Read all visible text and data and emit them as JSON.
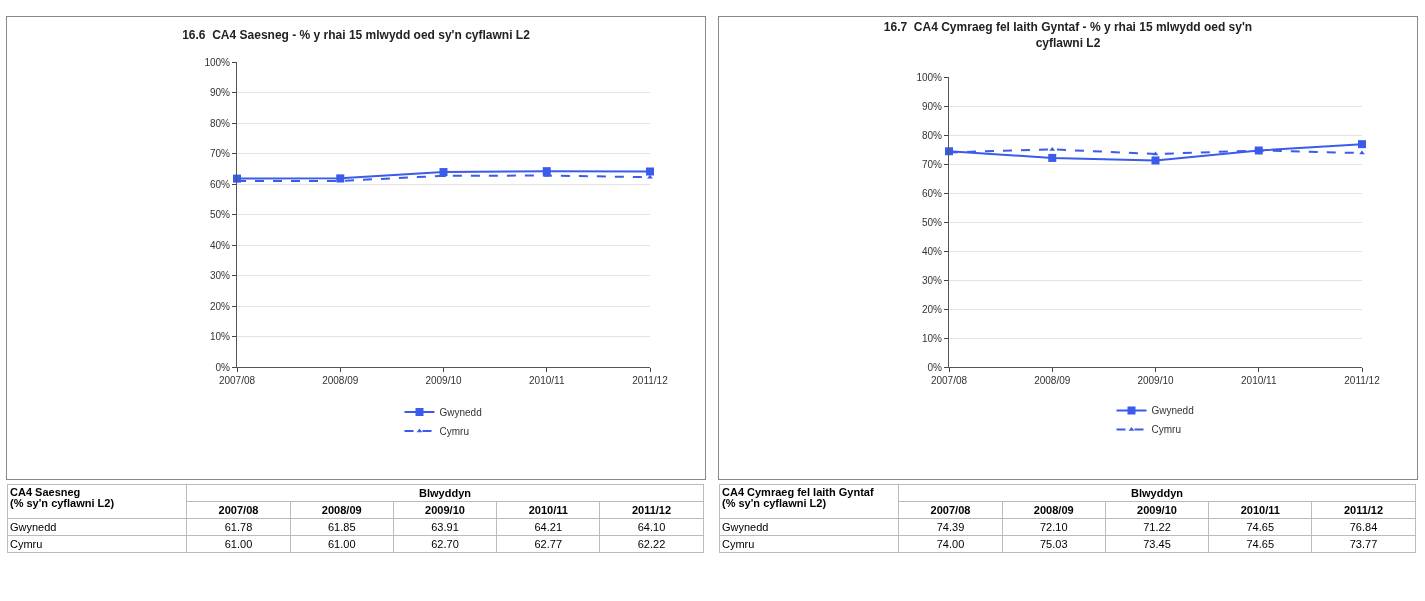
{
  "chart_data": [
    {
      "type": "line",
      "title": "16.6  CA4 Saesneg - % y rhai 15 mlwydd oed sy'n cyflawni L2",
      "categories": [
        "2007/08",
        "2008/09",
        "2009/10",
        "2010/11",
        "2011/12"
      ],
      "series": [
        {
          "name": "Gwynedd",
          "color": "#3b5bea",
          "marker": "square",
          "line_style": "solid",
          "values": [
            61.78,
            61.85,
            63.91,
            64.21,
            64.1
          ],
          "value_labels": [
            "61.78",
            "61.85",
            "63.91",
            "64.21",
            "64.10"
          ]
        },
        {
          "name": "Cymru",
          "color": "#3b5bea",
          "marker": "triangle",
          "line_style": "dashed",
          "values": [
            61.0,
            61.0,
            62.7,
            62.77,
            62.22
          ],
          "value_labels": [
            "61.00",
            "61.00",
            "62.70",
            "62.77",
            "62.22"
          ]
        }
      ],
      "ylim": [
        0,
        100
      ],
      "yticks": [
        {
          "value": 0,
          "label": "0%"
        },
        {
          "value": 10,
          "label": "10%"
        },
        {
          "value": 20,
          "label": "20%"
        },
        {
          "value": 30,
          "label": "30%"
        },
        {
          "value": 40,
          "label": "40%"
        },
        {
          "value": 50,
          "label": "50%"
        },
        {
          "value": 60,
          "label": "60%"
        },
        {
          "value": 70,
          "label": "70%"
        },
        {
          "value": 80,
          "label": "80%"
        },
        {
          "value": 90,
          "label": "90%"
        },
        {
          "value": 100,
          "label": "100%"
        }
      ],
      "grid": "y",
      "legend": "bottom",
      "annotations": [
        "CA4 Saesneg\n(% sy'n cyflawni L2)",
        "Blwyddyn"
      ]
    },
    {
      "type": "line",
      "title": "16.7  CA4 Cymraeg fel Iaith Gyntaf - % y rhai 15 mlwydd oed sy'n\ncyflawni L2",
      "categories": [
        "2007/08",
        "2008/09",
        "2009/10",
        "2010/11",
        "2011/12"
      ],
      "series": [
        {
          "name": "Gwynedd",
          "color": "#3b5bea",
          "marker": "square",
          "line_style": "solid",
          "values": [
            74.39,
            72.1,
            71.22,
            74.65,
            76.84
          ],
          "value_labels": [
            "74.39",
            "72.10",
            "71.22",
            "74.65",
            "76.84"
          ]
        },
        {
          "name": "Cymru",
          "color": "#3b5bea",
          "marker": "triangle",
          "line_style": "dashed",
          "values": [
            74.0,
            75.03,
            73.45,
            74.65,
            73.77
          ],
          "value_labels": [
            "74.00",
            "75.03",
            "73.45",
            "74.65",
            "73.77"
          ]
        }
      ],
      "ylim": [
        0,
        100
      ],
      "yticks": [
        {
          "value": 0,
          "label": "0%"
        },
        {
          "value": 10,
          "label": "10%"
        },
        {
          "value": 20,
          "label": "20%"
        },
        {
          "value": 30,
          "label": "30%"
        },
        {
          "value": 40,
          "label": "40%"
        },
        {
          "value": 50,
          "label": "50%"
        },
        {
          "value": 60,
          "label": "60%"
        },
        {
          "value": 70,
          "label": "70%"
        },
        {
          "value": 80,
          "label": "80%"
        },
        {
          "value": 90,
          "label": "90%"
        },
        {
          "value": 100,
          "label": "100%"
        }
      ],
      "grid": "y",
      "legend": "bottom",
      "annotations": [
        "CA4 Cymraeg fel Iaith Gyntaf\n(% sy'n cyflawni L2)",
        "Blwyddyn"
      ]
    }
  ]
}
